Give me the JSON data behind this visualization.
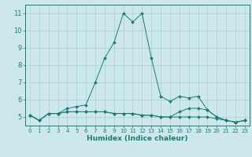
{
  "xlabel": "Humidex (Indice chaleur)",
  "background_color": "#cce8ec",
  "grid_color": "#aacdd4",
  "line_color": "#1e7b72",
  "x_ticks": [
    0,
    1,
    2,
    3,
    4,
    5,
    6,
    7,
    8,
    9,
    10,
    11,
    12,
    13,
    14,
    15,
    16,
    17,
    18,
    19,
    20,
    21,
    22,
    23
  ],
  "y_ticks": [
    5,
    6,
    7,
    8,
    9,
    10,
    11
  ],
  "ylim": [
    4.5,
    11.5
  ],
  "xlim": [
    -0.5,
    23.5
  ],
  "series": [
    [
      5.1,
      4.8,
      5.2,
      5.2,
      5.5,
      5.6,
      5.7,
      7.0,
      8.4,
      9.3,
      11.0,
      10.5,
      11.0,
      8.4,
      6.2,
      5.9,
      6.2,
      6.1,
      6.2,
      5.4,
      5.0,
      4.8,
      4.7,
      4.8
    ],
    [
      5.1,
      4.8,
      5.2,
      5.2,
      5.3,
      5.3,
      5.3,
      5.3,
      5.3,
      5.2,
      5.2,
      5.2,
      5.1,
      5.1,
      5.0,
      5.0,
      5.0,
      5.0,
      5.0,
      5.0,
      4.9,
      4.8,
      4.7,
      4.8
    ],
    [
      5.1,
      4.8,
      5.2,
      5.2,
      5.3,
      5.3,
      5.3,
      5.3,
      5.3,
      5.2,
      5.2,
      5.2,
      5.1,
      5.1,
      5.0,
      5.0,
      5.3,
      5.5,
      5.5,
      5.4,
      5.0,
      4.8,
      4.7,
      4.8
    ]
  ]
}
